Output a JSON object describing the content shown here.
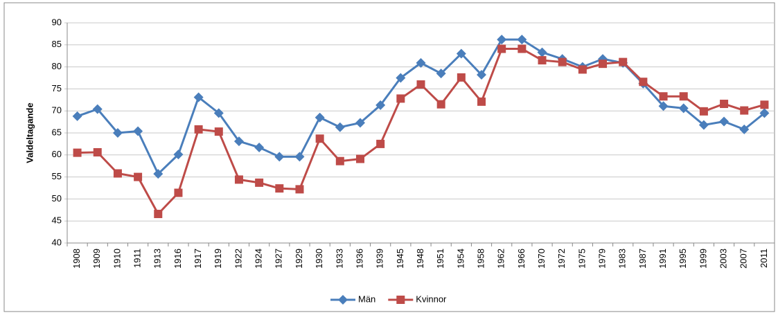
{
  "chart_data": {
    "type": "line",
    "y_label": "Valdeltagande",
    "categories": [
      "1908",
      "1909",
      "1910",
      "1911",
      "1913",
      "1916",
      "1917",
      "1919",
      "1922",
      "1924",
      "1927",
      "1929",
      "1930",
      "1933",
      "1936",
      "1939",
      "1945",
      "1948",
      "1951",
      "1954",
      "1958",
      "1962",
      "1966",
      "1970",
      "1972",
      "1975",
      "1979",
      "1983",
      "1987",
      "1991",
      "1995",
      "1999",
      "2003",
      "2007",
      "2011"
    ],
    "series": [
      {
        "name": "Män",
        "color": "#4a7ebb",
        "marker": "diamond",
        "values": [
          68.8,
          70.4,
          65.0,
          65.4,
          55.7,
          60.1,
          73.1,
          69.5,
          63.1,
          61.7,
          59.6,
          59.6,
          68.5,
          66.3,
          67.3,
          71.3,
          77.5,
          80.9,
          78.5,
          83.0,
          78.2,
          86.2,
          86.2,
          83.3,
          81.8,
          80.0,
          81.8,
          80.9,
          76.2,
          71.1,
          70.6,
          66.8,
          67.6,
          65.8,
          69.5
        ]
      },
      {
        "name": "Kvinnor",
        "color": "#be4b48",
        "marker": "square",
        "values": [
          60.5,
          60.6,
          55.8,
          55.0,
          46.6,
          51.4,
          65.8,
          65.3,
          54.4,
          53.7,
          52.4,
          52.2,
          63.7,
          58.6,
          59.1,
          62.5,
          72.8,
          76.0,
          71.5,
          77.6,
          72.1,
          84.1,
          84.1,
          81.5,
          81.1,
          79.4,
          80.7,
          81.1,
          76.6,
          73.3,
          73.3,
          69.9,
          71.6,
          70.1,
          71.4
        ]
      }
    ],
    "ylim": [
      40,
      90
    ],
    "yticks": [
      40,
      45,
      50,
      55,
      60,
      65,
      70,
      75,
      80,
      85,
      90
    ],
    "grid": true,
    "legend": "bottom"
  }
}
